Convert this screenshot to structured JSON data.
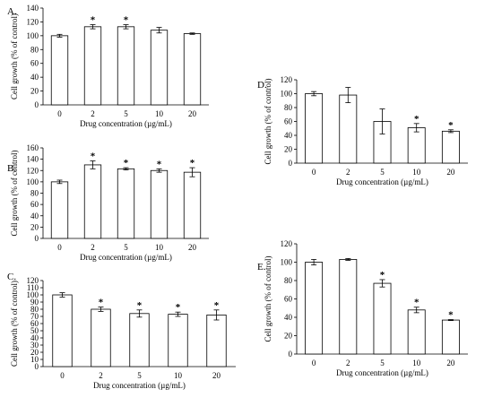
{
  "chart_data": [
    {
      "panel": "A.",
      "type": "bar",
      "categories": [
        "0",
        "2",
        "5",
        "10",
        "20"
      ],
      "values": [
        100,
        113,
        113,
        108,
        103
      ],
      "errors": [
        2,
        3,
        3,
        4,
        1
      ],
      "significant": [
        "",
        "*",
        "*",
        "",
        ""
      ],
      "ylim": [
        0,
        140
      ],
      "yticks": [
        "0",
        "20",
        "40",
        "60",
        "80",
        "100",
        "120",
        "140"
      ],
      "xlabel": "Drug concentration (µg/mL)",
      "ylabel": "Cell growth (% of control)"
    },
    {
      "panel": "B.",
      "type": "bar",
      "categories": [
        "0",
        "2",
        "5",
        "10",
        "20"
      ],
      "values": [
        100,
        130,
        123,
        120,
        117
      ],
      "errors": [
        3,
        7,
        2,
        3,
        8
      ],
      "significant": [
        "",
        "*",
        "*",
        "*",
        "*"
      ],
      "ylim": [
        0,
        160
      ],
      "yticks": [
        "0",
        "20",
        "40",
        "60",
        "80",
        "100",
        "120",
        "140",
        "160"
      ],
      "xlabel": "Drug concentration (µg/mL)",
      "ylabel": "Cell growth (% of control)"
    },
    {
      "panel": "C.",
      "type": "bar",
      "categories": [
        "0",
        "2",
        "5",
        "10",
        "20"
      ],
      "values": [
        100,
        80,
        74,
        73,
        72
      ],
      "errors": [
        3,
        3,
        5,
        3,
        7
      ],
      "significant": [
        "",
        "*",
        "*",
        "*",
        "*"
      ],
      "ylim": [
        0,
        120
      ],
      "yticks": [
        "0",
        "10",
        "20",
        "30",
        "40",
        "50",
        "60",
        "70",
        "80",
        "90",
        "100",
        "110",
        "120"
      ],
      "xlabel": "Drug concentration (µg/mL)",
      "ylabel": "Cell growth (% of control)"
    },
    {
      "panel": "D.",
      "type": "bar",
      "categories": [
        "0",
        "2",
        "5",
        "10",
        "20"
      ],
      "values": [
        100,
        98,
        60,
        51,
        46
      ],
      "errors": [
        3,
        11,
        18,
        6,
        2
      ],
      "significant": [
        "",
        "",
        "",
        "*",
        "*"
      ],
      "ylim": [
        0,
        120
      ],
      "yticks": [
        "0",
        "20",
        "40",
        "60",
        "80",
        "100",
        "120"
      ],
      "xlabel": "Drug concentration (µg/mL)",
      "ylabel": "Cell growth (% of control)"
    },
    {
      "panel": "E.",
      "type": "bar",
      "categories": [
        "0",
        "2",
        "5",
        "10",
        "20"
      ],
      "values": [
        100,
        103,
        77,
        48,
        37
      ],
      "errors": [
        3,
        1,
        4,
        3,
        0.5
      ],
      "significant": [
        "",
        "",
        "*",
        "*",
        "*"
      ],
      "ylim": [
        0,
        120
      ],
      "yticks": [
        "0",
        "20",
        "40",
        "60",
        "80",
        "100",
        "120"
      ],
      "xlabel": "Drug concentration (µg/mL)",
      "ylabel": "Cell growth (% of control)"
    }
  ]
}
